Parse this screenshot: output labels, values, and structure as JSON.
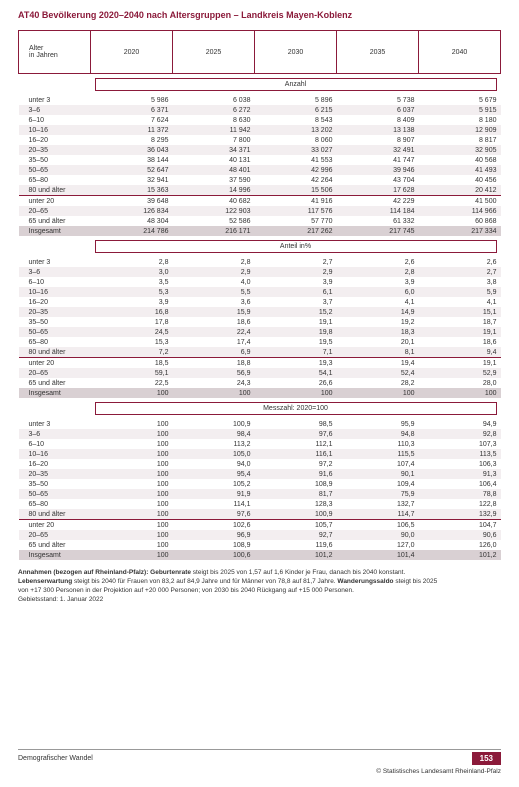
{
  "title": "AT40  Bevölkerung 2020–2040 nach Altersgruppen – Landkreis Mayen-Koblenz",
  "header": {
    "age_label_1": "Alter",
    "age_label_2": "in Jahren",
    "years": [
      "2020",
      "2025",
      "2030",
      "2035",
      "2040"
    ]
  },
  "sections": {
    "anzahl": "Anzahl",
    "anteil": "Anteil in%",
    "messzahl": "Messzahl: 2020=100"
  },
  "age_groups": [
    "unter 3",
    "3–6",
    "6–10",
    "10–16",
    "16–20",
    "20–35",
    "35–50",
    "50–65",
    "65–80",
    "80 und älter",
    "unter 20",
    "20–65",
    "65 und älter",
    "Insgesamt"
  ],
  "anzahl": [
    [
      "5 986",
      "6 038",
      "5 896",
      "5 738",
      "5 679"
    ],
    [
      "6 371",
      "6 272",
      "6 215",
      "6 037",
      "5 915"
    ],
    [
      "7 624",
      "8 630",
      "8 543",
      "8 409",
      "8 180"
    ],
    [
      "11 372",
      "11 942",
      "13 202",
      "13 138",
      "12 909"
    ],
    [
      "8 295",
      "7 800",
      "8 060",
      "8 907",
      "8 817"
    ],
    [
      "36 043",
      "34 371",
      "33 027",
      "32 491",
      "32 905"
    ],
    [
      "38 144",
      "40 131",
      "41 553",
      "41 747",
      "40 568"
    ],
    [
      "52 647",
      "48 401",
      "42 996",
      "39 946",
      "41 493"
    ],
    [
      "32 941",
      "37 590",
      "42 264",
      "43 704",
      "40 456"
    ],
    [
      "15 363",
      "14 996",
      "15 506",
      "17 628",
      "20 412"
    ],
    [
      "39 648",
      "40 682",
      "41 916",
      "42 229",
      "41 500"
    ],
    [
      "126 834",
      "122 903",
      "117 576",
      "114 184",
      "114 966"
    ],
    [
      "48 304",
      "52 586",
      "57 770",
      "61 332",
      "60 868"
    ],
    [
      "214 786",
      "216 171",
      "217 262",
      "217 745",
      "217 334"
    ]
  ],
  "anteil": [
    [
      "2,8",
      "2,8",
      "2,7",
      "2,6",
      "2,6"
    ],
    [
      "3,0",
      "2,9",
      "2,9",
      "2,8",
      "2,7"
    ],
    [
      "3,5",
      "4,0",
      "3,9",
      "3,9",
      "3,8"
    ],
    [
      "5,3",
      "5,5",
      "6,1",
      "6,0",
      "5,9"
    ],
    [
      "3,9",
      "3,6",
      "3,7",
      "4,1",
      "4,1"
    ],
    [
      "16,8",
      "15,9",
      "15,2",
      "14,9",
      "15,1"
    ],
    [
      "17,8",
      "18,6",
      "19,1",
      "19,2",
      "18,7"
    ],
    [
      "24,5",
      "22,4",
      "19,8",
      "18,3",
      "19,1"
    ],
    [
      "15,3",
      "17,4",
      "19,5",
      "20,1",
      "18,6"
    ],
    [
      "7,2",
      "6,9",
      "7,1",
      "8,1",
      "9,4"
    ],
    [
      "18,5",
      "18,8",
      "19,3",
      "19,4",
      "19,1"
    ],
    [
      "59,1",
      "56,9",
      "54,1",
      "52,4",
      "52,9"
    ],
    [
      "22,5",
      "24,3",
      "26,6",
      "28,2",
      "28,0"
    ],
    [
      "100",
      "100",
      "100",
      "100",
      "100"
    ]
  ],
  "messzahl": [
    [
      "100",
      "100,9",
      "98,5",
      "95,9",
      "94,9"
    ],
    [
      "100",
      "98,4",
      "97,6",
      "94,8",
      "92,8"
    ],
    [
      "100",
      "113,2",
      "112,1",
      "110,3",
      "107,3"
    ],
    [
      "100",
      "105,0",
      "116,1",
      "115,5",
      "113,5"
    ],
    [
      "100",
      "94,0",
      "97,2",
      "107,4",
      "106,3"
    ],
    [
      "100",
      "95,4",
      "91,6",
      "90,1",
      "91,3"
    ],
    [
      "100",
      "105,2",
      "108,9",
      "109,4",
      "106,4"
    ],
    [
      "100",
      "91,9",
      "81,7",
      "75,9",
      "78,8"
    ],
    [
      "100",
      "114,1",
      "128,3",
      "132,7",
      "122,8"
    ],
    [
      "100",
      "97,6",
      "100,9",
      "114,7",
      "132,9"
    ],
    [
      "100",
      "102,6",
      "105,7",
      "106,5",
      "104,7"
    ],
    [
      "100",
      "96,9",
      "92,7",
      "90,0",
      "90,6"
    ],
    [
      "100",
      "108,9",
      "119,6",
      "127,0",
      "126,0"
    ],
    [
      "100",
      "100,6",
      "101,2",
      "101,4",
      "101,2"
    ]
  ],
  "footnotes": {
    "line1a": "Annahmen (bezogen auf Rheinland-Pfalz): Geburtenrate",
    "line1b": " steigt bis 2025 von 1,57 auf 1,6 Kinder je Frau, danach bis 2040 konstant.",
    "line2a": "Lebenserwartung",
    "line2b": " steigt bis 2040 für Frauen von 83,2 auf 84,9 Jahre und für Männer von 78,8 auf 81,7 Jahre. ",
    "line2c": "Wanderungssaldo",
    "line2d": " steigt bis 2025",
    "line3": "von +17 300 Personen in der Projektion auf +20 000  Personen; von 2030 bis 2040 Rückgang auf +15 000 Personen.",
    "line4": "Gebietsstand: 1. Januar 2022"
  },
  "footer": {
    "left": "Demografischer Wandel",
    "page": "153",
    "copyright": "© Statistisches Landesamt Rheinland-Pfalz"
  },
  "colors": {
    "accent": "#8b1a3a",
    "stripe": "#f3eef0",
    "total": "#d9d0d3"
  }
}
